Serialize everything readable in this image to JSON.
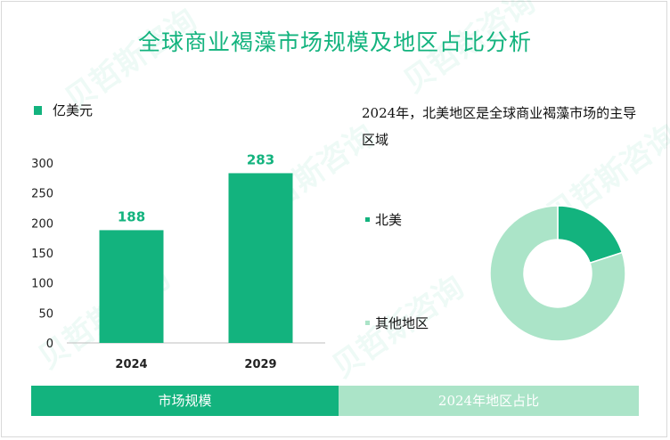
{
  "title": "全球商业褐藻市场规模及地区占比分析",
  "unit_label": "亿美元",
  "note": "2024年，北美地区是全球商业褐藻市场的主导区域",
  "watermark": "贝哲斯咨询",
  "colors": {
    "accent": "#13b37e",
    "light": "#abe4c8"
  },
  "tabs": {
    "left": "市场规模",
    "right": "2024年地区占比"
  },
  "chart_data": [
    {
      "type": "bar",
      "title": "市场规模",
      "categories": [
        "2024",
        "2029"
      ],
      "values": [
        188,
        283
      ],
      "yticks": [
        0,
        50,
        100,
        150,
        200,
        250,
        300
      ],
      "ylim": [
        0,
        300
      ],
      "ylabel": "亿美元",
      "color": "#13b37e"
    },
    {
      "type": "pie",
      "title": "2024年地区占比",
      "labels": [
        "北美",
        "其他地区"
      ],
      "values": [
        20,
        80
      ],
      "colors": [
        "#13b37e",
        "#abe4c8"
      ]
    }
  ]
}
